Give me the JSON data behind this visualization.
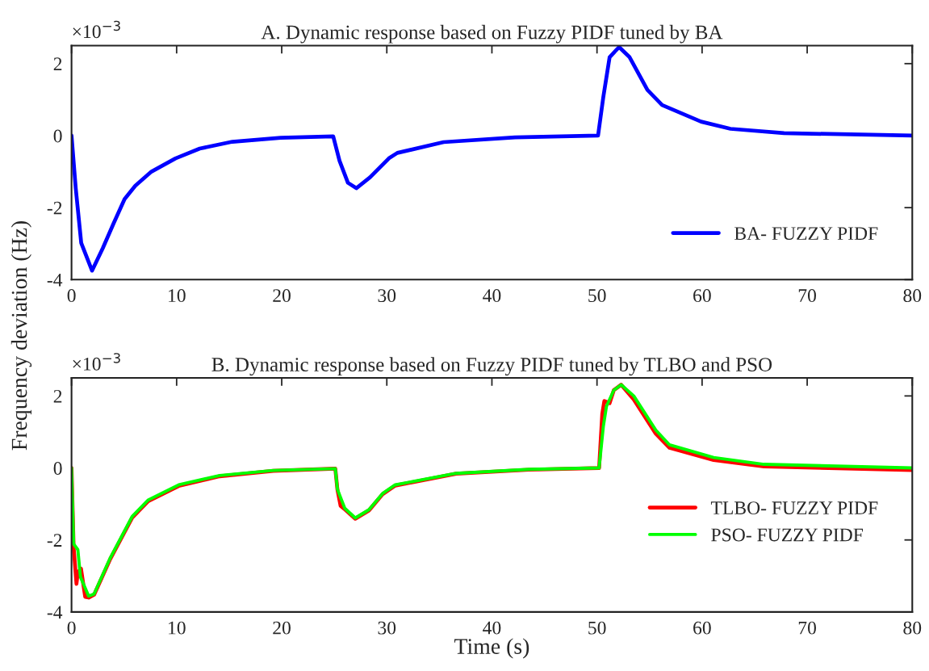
{
  "chart_data": [
    {
      "type": "line",
      "title": "A. Dynamic response based on Fuzzy PIDF tuned by BA",
      "ylabel": "Frequency deviation (Hz)",
      "annotations": [
        "×10$^{−3}$"
      ],
      "xlim": [
        0,
        80
      ],
      "xticks": [
        0,
        10,
        20,
        30,
        40,
        50,
        60,
        70,
        80
      ],
      "ylim": [
        -4,
        2.5
      ],
      "yticks": [
        -4,
        -2,
        0,
        2
      ],
      "grid": false,
      "legend": "bottom right",
      "series": [
        {
          "name": "BA- FUZZY PIDF",
          "color": "#0000ff",
          "x": [
            0,
            0.4,
            0.92,
            1.95,
            2.97,
            4,
            5.05,
            6.07,
            7.6,
            9.9,
            12.2,
            15.3,
            19.9,
            24.9,
            25.5,
            26.3,
            27.1,
            28.4,
            30.2,
            31,
            35.4,
            42.2,
            50.1,
            50.6,
            51.2,
            52.1,
            53.1,
            54.8,
            56.2,
            59.9,
            62.7,
            67.8,
            80
          ],
          "values": [
            0,
            -1.46,
            -2.98,
            -3.75,
            -3.13,
            -2.44,
            -1.76,
            -1.39,
            -1.0,
            -0.63,
            -0.36,
            -0.17,
            -0.06,
            -0.02,
            -0.7,
            -1.31,
            -1.46,
            -1.16,
            -0.63,
            -0.48,
            -0.18,
            -0.05,
            0,
            1.07,
            2.18,
            2.46,
            2.18,
            1.27,
            0.85,
            0.39,
            0.19,
            0.07,
            0
          ]
        }
      ]
    },
    {
      "type": "line",
      "title": "B. Dynamic response based on Fuzzy PIDF tuned by TLBO and PSO",
      "xlabel": "Time (s)",
      "annotations": [
        "×10$^{−3}$"
      ],
      "xlim": [
        0,
        80
      ],
      "xticks": [
        0,
        10,
        20,
        30,
        40,
        50,
        60,
        70,
        80
      ],
      "ylim": [
        -4,
        2.5
      ],
      "yticks": [
        -4,
        -2,
        0,
        2
      ],
      "grid": false,
      "legend": "right",
      "series": [
        {
          "name": "TLBO- FUZZY PIDF",
          "color": "#ff0000",
          "x": [
            0,
            0.2,
            0.47,
            0.6,
            0.9,
            1.3,
            1.63,
            2.15,
            3.7,
            5.77,
            7.3,
            10.2,
            14.1,
            19.2,
            25.1,
            25.3,
            25.6,
            26,
            27,
            28.3,
            29.6,
            30.8,
            36.6,
            43.5,
            50.2,
            50.5,
            50.7,
            51.2,
            51.6,
            52.3,
            53.5,
            55.6,
            56.9,
            61.1,
            65.9,
            80
          ],
          "values": [
            0,
            -2.2,
            -3.22,
            -2.9,
            -2.8,
            -3.58,
            -3.6,
            -3.52,
            -2.52,
            -1.38,
            -0.92,
            -0.5,
            -0.23,
            -0.08,
            -0.02,
            -0.6,
            -1.05,
            -1.15,
            -1.41,
            -1.18,
            -0.73,
            -0.49,
            -0.16,
            -0.05,
            0,
            1.5,
            1.86,
            1.8,
            2.16,
            2.31,
            1.9,
            0.95,
            0.56,
            0.22,
            0.04,
            -0.06
          ]
        },
        {
          "name": "PSO- FUZZY PIDF",
          "color": "#00ff00",
          "x": [
            0,
            0.2,
            0.6,
            0.85,
            1.63,
            2.15,
            3.7,
            5.77,
            7.3,
            10.2,
            14.1,
            19.2,
            25.1,
            25.3,
            25.6,
            26,
            27,
            28.3,
            29.6,
            30.8,
            36.6,
            43.5,
            50.2,
            50.6,
            50.9,
            51.6,
            52.3,
            53.5,
            55.6,
            56.9,
            61.1,
            65.9,
            80
          ],
          "values": [
            0,
            -2.11,
            -2.27,
            -3.03,
            -3.56,
            -3.5,
            -2.49,
            -1.35,
            -0.89,
            -0.47,
            -0.21,
            -0.07,
            -0.02,
            -0.59,
            -0.82,
            -1.12,
            -1.39,
            -1.16,
            -0.71,
            -0.47,
            -0.15,
            -0.04,
            0,
            1.15,
            1.71,
            2.16,
            2.31,
            2.0,
            1.05,
            0.64,
            0.29,
            0.1,
            0
          ]
        }
      ]
    }
  ]
}
